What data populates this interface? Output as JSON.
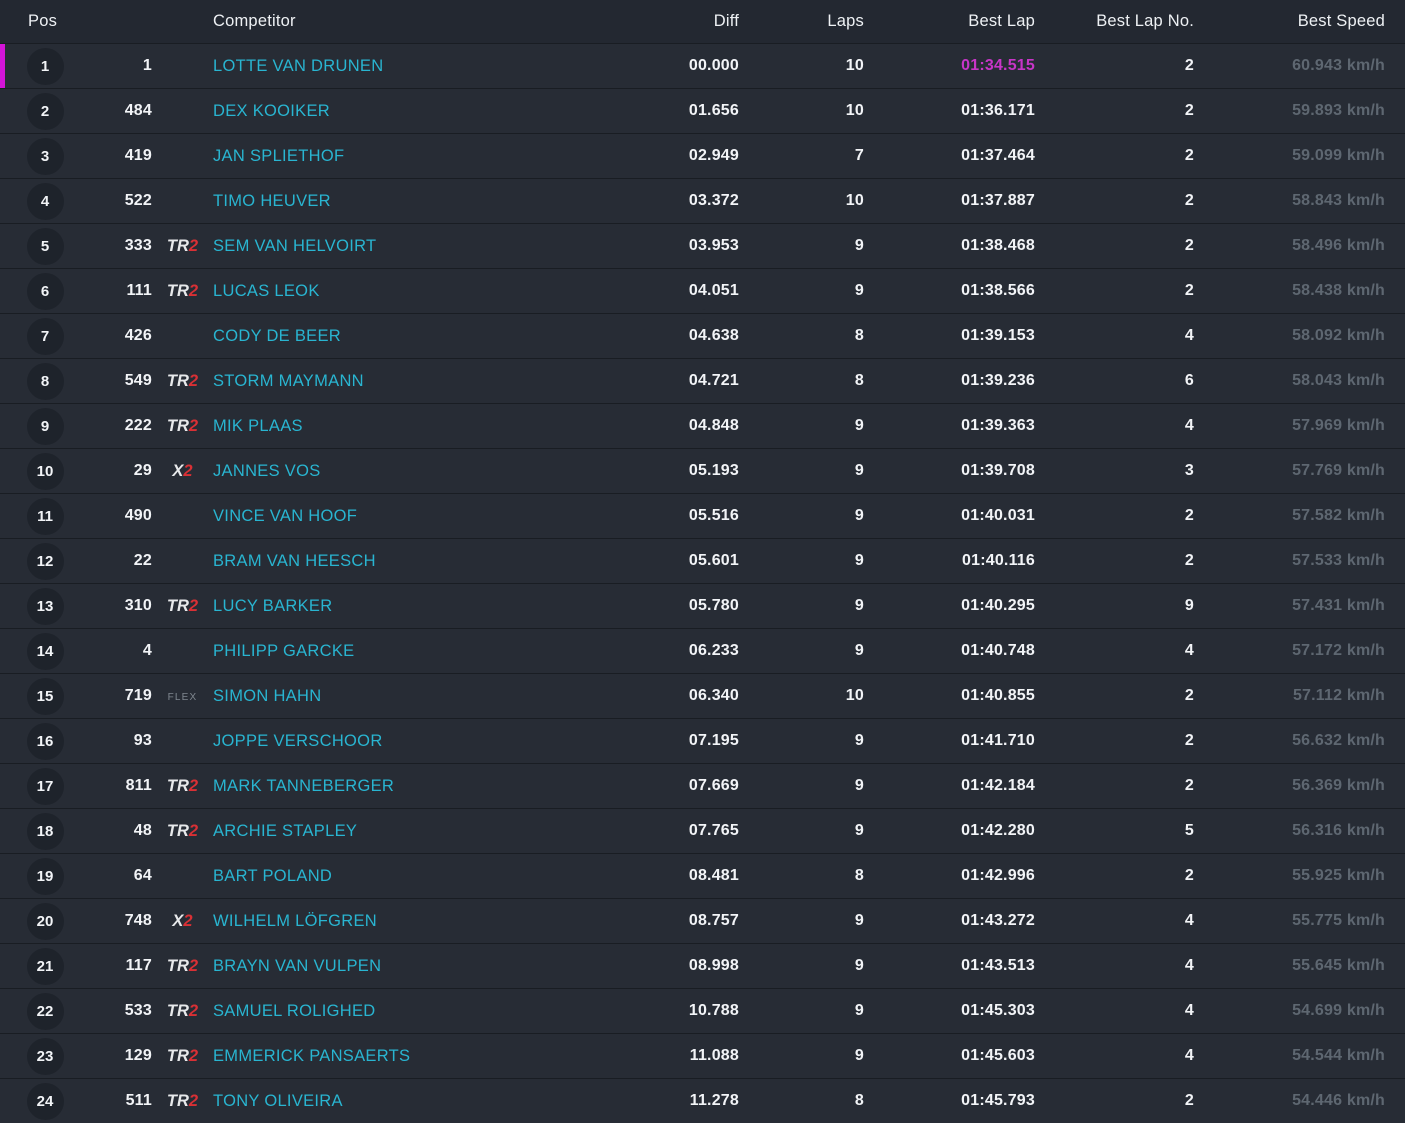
{
  "table": {
    "header": {
      "pos": "Pos",
      "competitor": "Competitor",
      "diff": "Diff",
      "laps": "Laps",
      "best_lap": "Best Lap",
      "best_lap_no": "Best Lap No.",
      "best_speed": "Best Speed"
    },
    "rows": [
      {
        "pos": "1",
        "car_no": "1",
        "badge": "",
        "name": "LOTTE VAN DRUNEN",
        "diff": "00.000",
        "laps": "10",
        "best_lap": "01:34.515",
        "best_lap_no": "2",
        "best_speed": "60.943 km/h",
        "leader": true,
        "best_lap_fastest": true
      },
      {
        "pos": "2",
        "car_no": "484",
        "badge": "",
        "name": "DEX KOOIKER",
        "diff": "01.656",
        "laps": "10",
        "best_lap": "01:36.171",
        "best_lap_no": "2",
        "best_speed": "59.893 km/h",
        "leader": false,
        "best_lap_fastest": false
      },
      {
        "pos": "3",
        "car_no": "419",
        "badge": "",
        "name": "JAN SPLIETHOF",
        "diff": "02.949",
        "laps": "7",
        "best_lap": "01:37.464",
        "best_lap_no": "2",
        "best_speed": "59.099 km/h",
        "leader": false,
        "best_lap_fastest": false
      },
      {
        "pos": "4",
        "car_no": "522",
        "badge": "",
        "name": "TIMO HEUVER",
        "diff": "03.372",
        "laps": "10",
        "best_lap": "01:37.887",
        "best_lap_no": "2",
        "best_speed": "58.843 km/h",
        "leader": false,
        "best_lap_fastest": false
      },
      {
        "pos": "5",
        "car_no": "333",
        "badge": "TR2",
        "name": "SEM VAN HELVOIRT",
        "diff": "03.953",
        "laps": "9",
        "best_lap": "01:38.468",
        "best_lap_no": "2",
        "best_speed": "58.496 km/h",
        "leader": false,
        "best_lap_fastest": false
      },
      {
        "pos": "6",
        "car_no": "111",
        "badge": "TR2",
        "name": "LUCAS LEOK",
        "diff": "04.051",
        "laps": "9",
        "best_lap": "01:38.566",
        "best_lap_no": "2",
        "best_speed": "58.438 km/h",
        "leader": false,
        "best_lap_fastest": false
      },
      {
        "pos": "7",
        "car_no": "426",
        "badge": "",
        "name": "CODY DE BEER",
        "diff": "04.638",
        "laps": "8",
        "best_lap": "01:39.153",
        "best_lap_no": "4",
        "best_speed": "58.092 km/h",
        "leader": false,
        "best_lap_fastest": false
      },
      {
        "pos": "8",
        "car_no": "549",
        "badge": "TR2",
        "name": "STORM MAYMANN",
        "diff": "04.721",
        "laps": "8",
        "best_lap": "01:39.236",
        "best_lap_no": "6",
        "best_speed": "58.043 km/h",
        "leader": false,
        "best_lap_fastest": false
      },
      {
        "pos": "9",
        "car_no": "222",
        "badge": "TR2",
        "name": "MIK PLAAS",
        "diff": "04.848",
        "laps": "9",
        "best_lap": "01:39.363",
        "best_lap_no": "4",
        "best_speed": "57.969 km/h",
        "leader": false,
        "best_lap_fastest": false
      },
      {
        "pos": "10",
        "car_no": "29",
        "badge": "X2",
        "name": "JANNES VOS",
        "diff": "05.193",
        "laps": "9",
        "best_lap": "01:39.708",
        "best_lap_no": "3",
        "best_speed": "57.769 km/h",
        "leader": false,
        "best_lap_fastest": false
      },
      {
        "pos": "11",
        "car_no": "490",
        "badge": "",
        "name": "VINCE VAN HOOF",
        "diff": "05.516",
        "laps": "9",
        "best_lap": "01:40.031",
        "best_lap_no": "2",
        "best_speed": "57.582 km/h",
        "leader": false,
        "best_lap_fastest": false
      },
      {
        "pos": "12",
        "car_no": "22",
        "badge": "",
        "name": "BRAM VAN HEESCH",
        "diff": "05.601",
        "laps": "9",
        "best_lap": "01:40.116",
        "best_lap_no": "2",
        "best_speed": "57.533 km/h",
        "leader": false,
        "best_lap_fastest": false
      },
      {
        "pos": "13",
        "car_no": "310",
        "badge": "TR2",
        "name": "LUCY BARKER",
        "diff": "05.780",
        "laps": "9",
        "best_lap": "01:40.295",
        "best_lap_no": "9",
        "best_speed": "57.431 km/h",
        "leader": false,
        "best_lap_fastest": false
      },
      {
        "pos": "14",
        "car_no": "4",
        "badge": "",
        "name": "PHILIPP GARCKE",
        "diff": "06.233",
        "laps": "9",
        "best_lap": "01:40.748",
        "best_lap_no": "4",
        "best_speed": "57.172 km/h",
        "leader": false,
        "best_lap_fastest": false
      },
      {
        "pos": "15",
        "car_no": "719",
        "badge": "FLEX",
        "name": "SIMON HAHN",
        "diff": "06.340",
        "laps": "10",
        "best_lap": "01:40.855",
        "best_lap_no": "2",
        "best_speed": "57.112 km/h",
        "leader": false,
        "best_lap_fastest": false
      },
      {
        "pos": "16",
        "car_no": "93",
        "badge": "",
        "name": "JOPPE VERSCHOOR",
        "diff": "07.195",
        "laps": "9",
        "best_lap": "01:41.710",
        "best_lap_no": "2",
        "best_speed": "56.632 km/h",
        "leader": false,
        "best_lap_fastest": false
      },
      {
        "pos": "17",
        "car_no": "811",
        "badge": "TR2",
        "name": "MARK TANNEBERGER",
        "diff": "07.669",
        "laps": "9",
        "best_lap": "01:42.184",
        "best_lap_no": "2",
        "best_speed": "56.369 km/h",
        "leader": false,
        "best_lap_fastest": false
      },
      {
        "pos": "18",
        "car_no": "48",
        "badge": "TR2",
        "name": "ARCHIE STAPLEY",
        "diff": "07.765",
        "laps": "9",
        "best_lap": "01:42.280",
        "best_lap_no": "5",
        "best_speed": "56.316 km/h",
        "leader": false,
        "best_lap_fastest": false
      },
      {
        "pos": "19",
        "car_no": "64",
        "badge": "",
        "name": "BART POLAND",
        "diff": "08.481",
        "laps": "8",
        "best_lap": "01:42.996",
        "best_lap_no": "2",
        "best_speed": "55.925 km/h",
        "leader": false,
        "best_lap_fastest": false
      },
      {
        "pos": "20",
        "car_no": "748",
        "badge": "X2",
        "name": "WILHELM LÖFGREN",
        "diff": "08.757",
        "laps": "9",
        "best_lap": "01:43.272",
        "best_lap_no": "4",
        "best_speed": "55.775 km/h",
        "leader": false,
        "best_lap_fastest": false
      },
      {
        "pos": "21",
        "car_no": "117",
        "badge": "TR2",
        "name": "BRAYN VAN VULPEN",
        "diff": "08.998",
        "laps": "9",
        "best_lap": "01:43.513",
        "best_lap_no": "4",
        "best_speed": "55.645 km/h",
        "leader": false,
        "best_lap_fastest": false
      },
      {
        "pos": "22",
        "car_no": "533",
        "badge": "TR2",
        "name": "SAMUEL ROLIGHED",
        "diff": "10.788",
        "laps": "9",
        "best_lap": "01:45.303",
        "best_lap_no": "4",
        "best_speed": "54.699 km/h",
        "leader": false,
        "best_lap_fastest": false
      },
      {
        "pos": "23",
        "car_no": "129",
        "badge": "TR2",
        "name": "EMMERICK PANSAERTS",
        "diff": "11.088",
        "laps": "9",
        "best_lap": "01:45.603",
        "best_lap_no": "4",
        "best_speed": "54.544 km/h",
        "leader": false,
        "best_lap_fastest": false
      },
      {
        "pos": "24",
        "car_no": "511",
        "badge": "TR2",
        "name": "TONY OLIVEIRA",
        "diff": "11.278",
        "laps": "8",
        "best_lap": "01:45.793",
        "best_lap_no": "2",
        "best_speed": "54.446 km/h",
        "leader": false,
        "best_lap_fastest": false
      }
    ]
  },
  "colors": {
    "accent_magenta_bar": "#d414d8",
    "fastest_lap_magenta": "#c735c7",
    "competitor_cyan": "#29b5d1",
    "badge_red": "#d93035",
    "speed_gray": "#5e6771",
    "row_background": "#272c35",
    "header_background": "#232831"
  }
}
